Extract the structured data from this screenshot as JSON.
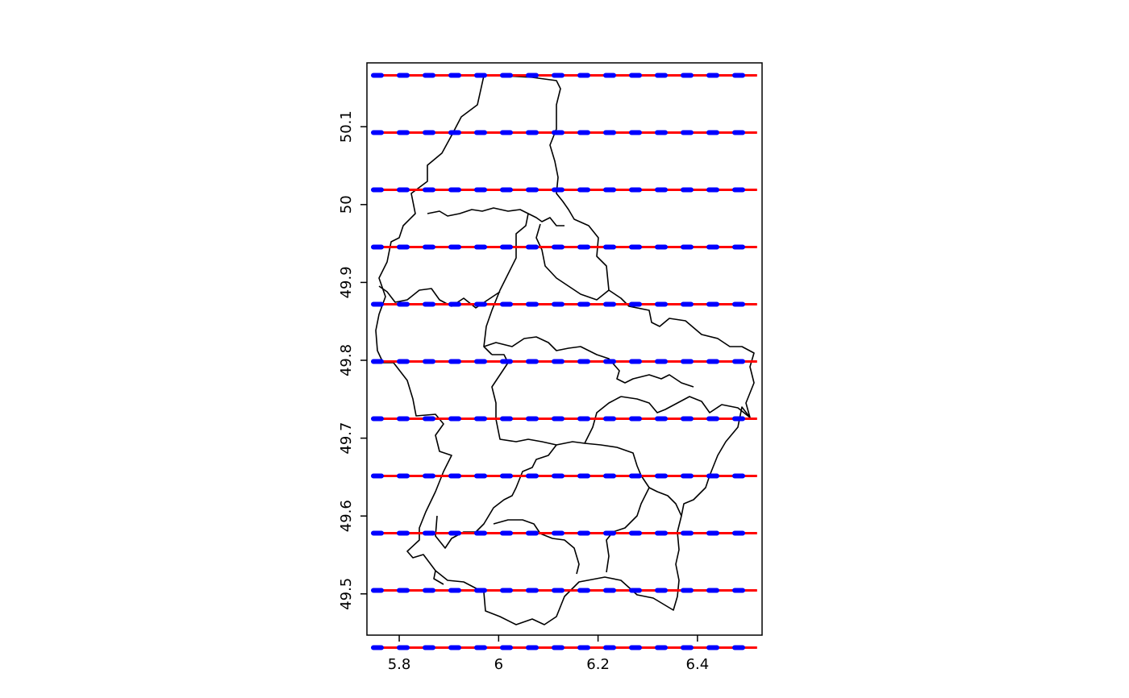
{
  "chart_data": {
    "type": "map",
    "title": "",
    "xlabel": "",
    "ylabel": "",
    "xlim": [
      5.735,
      6.53
    ],
    "ylim": [
      49.447,
      50.182
    ],
    "x_ticks": [
      {
        "value": 5.8,
        "label": "5.8"
      },
      {
        "value": 6.0,
        "label": "6"
      },
      {
        "value": 6.2,
        "label": "6.2"
      },
      {
        "value": 6.4,
        "label": "6.4"
      }
    ],
    "y_ticks": [
      {
        "value": 49.5,
        "label": "49.5"
      },
      {
        "value": 49.6,
        "label": "49.6"
      },
      {
        "value": 49.7,
        "label": "49.7"
      },
      {
        "value": 49.8,
        "label": "49.8"
      },
      {
        "value": 49.9,
        "label": "49.9"
      },
      {
        "value": 50.0,
        "label": "50"
      },
      {
        "value": 50.1,
        "label": "50.1"
      }
    ],
    "series": [
      {
        "color": "#ff0000",
        "style": "solid",
        "lines": [
          {
            "y": 50.166,
            "x_range": [
              5.748,
              6.52
            ]
          },
          {
            "y": 50.0925,
            "x_range": [
              5.748,
              6.52
            ]
          },
          {
            "y": 50.019,
            "x_range": [
              5.748,
              6.52
            ]
          },
          {
            "y": 49.9455,
            "x_range": [
              5.748,
              6.52
            ]
          },
          {
            "y": 49.872,
            "x_range": [
              5.748,
              6.52
            ]
          },
          {
            "y": 49.7985,
            "x_range": [
              5.748,
              6.52
            ]
          },
          {
            "y": 49.725,
            "x_range": [
              5.748,
              6.52
            ]
          },
          {
            "y": 49.6515,
            "x_range": [
              5.748,
              6.52
            ]
          },
          {
            "y": 49.578,
            "x_range": [
              5.748,
              6.52
            ]
          },
          {
            "y": 49.5045,
            "x_range": [
              5.748,
              6.52
            ]
          },
          {
            "y": 49.431,
            "x_range": [
              5.748,
              6.52
            ]
          }
        ]
      },
      {
        "color": "#0000ff",
        "style": "dotted",
        "lines": [
          {
            "y": 50.166,
            "x_range": [
              5.748,
              6.52
            ]
          },
          {
            "y": 50.0925,
            "x_range": [
              5.748,
              6.52
            ]
          },
          {
            "y": 50.019,
            "x_range": [
              5.748,
              6.52
            ]
          },
          {
            "y": 49.9455,
            "x_range": [
              5.748,
              6.52
            ]
          },
          {
            "y": 49.872,
            "x_range": [
              5.748,
              6.52
            ]
          },
          {
            "y": 49.7985,
            "x_range": [
              5.748,
              6.52
            ]
          },
          {
            "y": 49.725,
            "x_range": [
              5.748,
              6.52
            ]
          },
          {
            "y": 49.6515,
            "x_range": [
              5.748,
              6.52
            ]
          },
          {
            "y": 49.578,
            "x_range": [
              5.748,
              6.52
            ]
          },
          {
            "y": 49.5045,
            "x_range": [
              5.748,
              6.52
            ]
          },
          {
            "y": 49.431,
            "x_range": [
              5.748,
              6.52
            ]
          }
        ]
      }
    ],
    "grid": false,
    "legend": "none"
  },
  "colors": {
    "boundary": "#000000",
    "red_lines": "#ff0000",
    "blue_lines": "#0000ff"
  }
}
